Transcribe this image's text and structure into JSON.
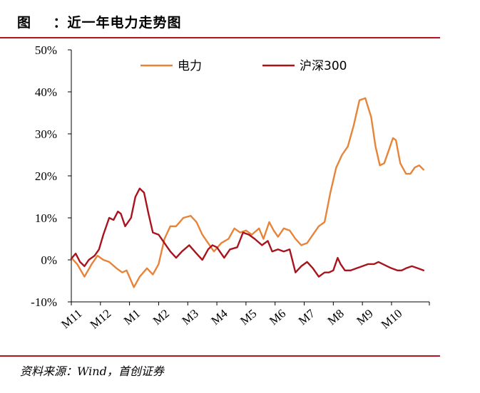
{
  "figure": {
    "title": "图    ：近一年电力走势图",
    "source": "资料来源：Wind，首创证券"
  },
  "chart_data": {
    "type": "line",
    "title": "",
    "xlabel": "",
    "ylabel": "",
    "ylim": [
      -10,
      50
    ],
    "yticks": [
      "50%",
      "40%",
      "30%",
      "20%",
      "10%",
      "0%",
      "-10%"
    ],
    "y_unit": "%",
    "x_tick_labels": [
      "M11",
      "M12",
      "M1",
      "M2",
      "M3",
      "M4",
      "M5",
      "M6",
      "M7",
      "M8",
      "M9",
      "M10"
    ],
    "x_range": [
      0,
      12.3
    ],
    "legend_position": "top",
    "series": [
      {
        "name": "电力",
        "color": "#e8843a",
        "points": [
          [
            0,
            0.5
          ],
          [
            0.2,
            -1
          ],
          [
            0.45,
            -4
          ],
          [
            0.7,
            -1
          ],
          [
            0.9,
            1
          ],
          [
            1.1,
            0
          ],
          [
            1.3,
            -0.5
          ],
          [
            1.55,
            -2
          ],
          [
            1.75,
            -3
          ],
          [
            1.9,
            -2.5
          ],
          [
            2.15,
            -6.5
          ],
          [
            2.35,
            -4
          ],
          [
            2.6,
            -2
          ],
          [
            2.8,
            -3.5
          ],
          [
            3.0,
            -1
          ],
          [
            3.2,
            5
          ],
          [
            3.4,
            8
          ],
          [
            3.6,
            8
          ],
          [
            3.85,
            10
          ],
          [
            4.1,
            10.5
          ],
          [
            4.3,
            9
          ],
          [
            4.5,
            6
          ],
          [
            4.7,
            4
          ],
          [
            4.9,
            2
          ],
          [
            5.15,
            4
          ],
          [
            5.4,
            5
          ],
          [
            5.6,
            7.5
          ],
          [
            5.8,
            6.5
          ],
          [
            6.0,
            7
          ],
          [
            6.2,
            6
          ],
          [
            6.45,
            7.5
          ],
          [
            6.6,
            5
          ],
          [
            6.8,
            9
          ],
          [
            6.95,
            7
          ],
          [
            7.1,
            5.5
          ],
          [
            7.3,
            7.5
          ],
          [
            7.5,
            7
          ],
          [
            7.7,
            5
          ],
          [
            7.9,
            3.5
          ],
          [
            8.1,
            4
          ],
          [
            8.3,
            6
          ],
          [
            8.5,
            8
          ],
          [
            8.7,
            9
          ],
          [
            8.9,
            16
          ],
          [
            9.1,
            22
          ],
          [
            9.3,
            25
          ],
          [
            9.5,
            27
          ],
          [
            9.7,
            32
          ],
          [
            9.9,
            38
          ],
          [
            10.1,
            38.5
          ],
          [
            10.3,
            34
          ],
          [
            10.45,
            27
          ],
          [
            10.6,
            22.5
          ],
          [
            10.75,
            23
          ],
          [
            10.9,
            26
          ],
          [
            11.05,
            29
          ],
          [
            11.15,
            28.5
          ],
          [
            11.3,
            23
          ],
          [
            11.5,
            20.5
          ],
          [
            11.65,
            20.5
          ],
          [
            11.8,
            22
          ],
          [
            11.95,
            22.5
          ],
          [
            12.1,
            21.5
          ]
        ]
      },
      {
        "name": "沪深300",
        "color": "#a8141d",
        "points": [
          [
            0,
            0.3
          ],
          [
            0.15,
            1.5
          ],
          [
            0.3,
            -0.5
          ],
          [
            0.45,
            -1.5
          ],
          [
            0.6,
            0
          ],
          [
            0.8,
            1
          ],
          [
            0.95,
            2.5
          ],
          [
            1.1,
            6
          ],
          [
            1.3,
            10
          ],
          [
            1.45,
            9.5
          ],
          [
            1.6,
            11.5
          ],
          [
            1.7,
            11
          ],
          [
            1.85,
            8
          ],
          [
            2.05,
            10
          ],
          [
            2.2,
            15
          ],
          [
            2.35,
            17
          ],
          [
            2.5,
            16
          ],
          [
            2.65,
            11
          ],
          [
            2.8,
            6.5
          ],
          [
            3.0,
            6
          ],
          [
            3.2,
            4
          ],
          [
            3.4,
            2
          ],
          [
            3.6,
            0.5
          ],
          [
            3.8,
            2
          ],
          [
            4.05,
            3.5
          ],
          [
            4.3,
            1.5
          ],
          [
            4.5,
            0
          ],
          [
            4.7,
            2.5
          ],
          [
            4.85,
            3.5
          ],
          [
            5.0,
            3
          ],
          [
            5.25,
            0.5
          ],
          [
            5.45,
            2.5
          ],
          [
            5.7,
            3
          ],
          [
            5.9,
            6.5
          ],
          [
            6.1,
            6
          ],
          [
            6.3,
            5
          ],
          [
            6.55,
            3.5
          ],
          [
            6.75,
            4.5
          ],
          [
            6.9,
            2
          ],
          [
            7.1,
            2.5
          ],
          [
            7.3,
            2
          ],
          [
            7.5,
            2.5
          ],
          [
            7.7,
            -3
          ],
          [
            7.9,
            -1.5
          ],
          [
            8.1,
            -0.5
          ],
          [
            8.3,
            -2
          ],
          [
            8.5,
            -4
          ],
          [
            8.7,
            -3
          ],
          [
            8.85,
            -3
          ],
          [
            9.0,
            -2.5
          ],
          [
            9.15,
            0.5
          ],
          [
            9.25,
            -1
          ],
          [
            9.4,
            -2.5
          ],
          [
            9.6,
            -2.5
          ],
          [
            9.8,
            -2
          ],
          [
            10.0,
            -1.5
          ],
          [
            10.2,
            -1
          ],
          [
            10.4,
            -1
          ],
          [
            10.55,
            -0.5
          ],
          [
            10.7,
            -1
          ],
          [
            10.85,
            -1.5
          ],
          [
            11.0,
            -2
          ],
          [
            11.2,
            -2.5
          ],
          [
            11.35,
            -2.5
          ],
          [
            11.5,
            -2
          ],
          [
            11.7,
            -1.5
          ],
          [
            11.9,
            -2
          ],
          [
            12.1,
            -2.5
          ]
        ]
      }
    ]
  }
}
